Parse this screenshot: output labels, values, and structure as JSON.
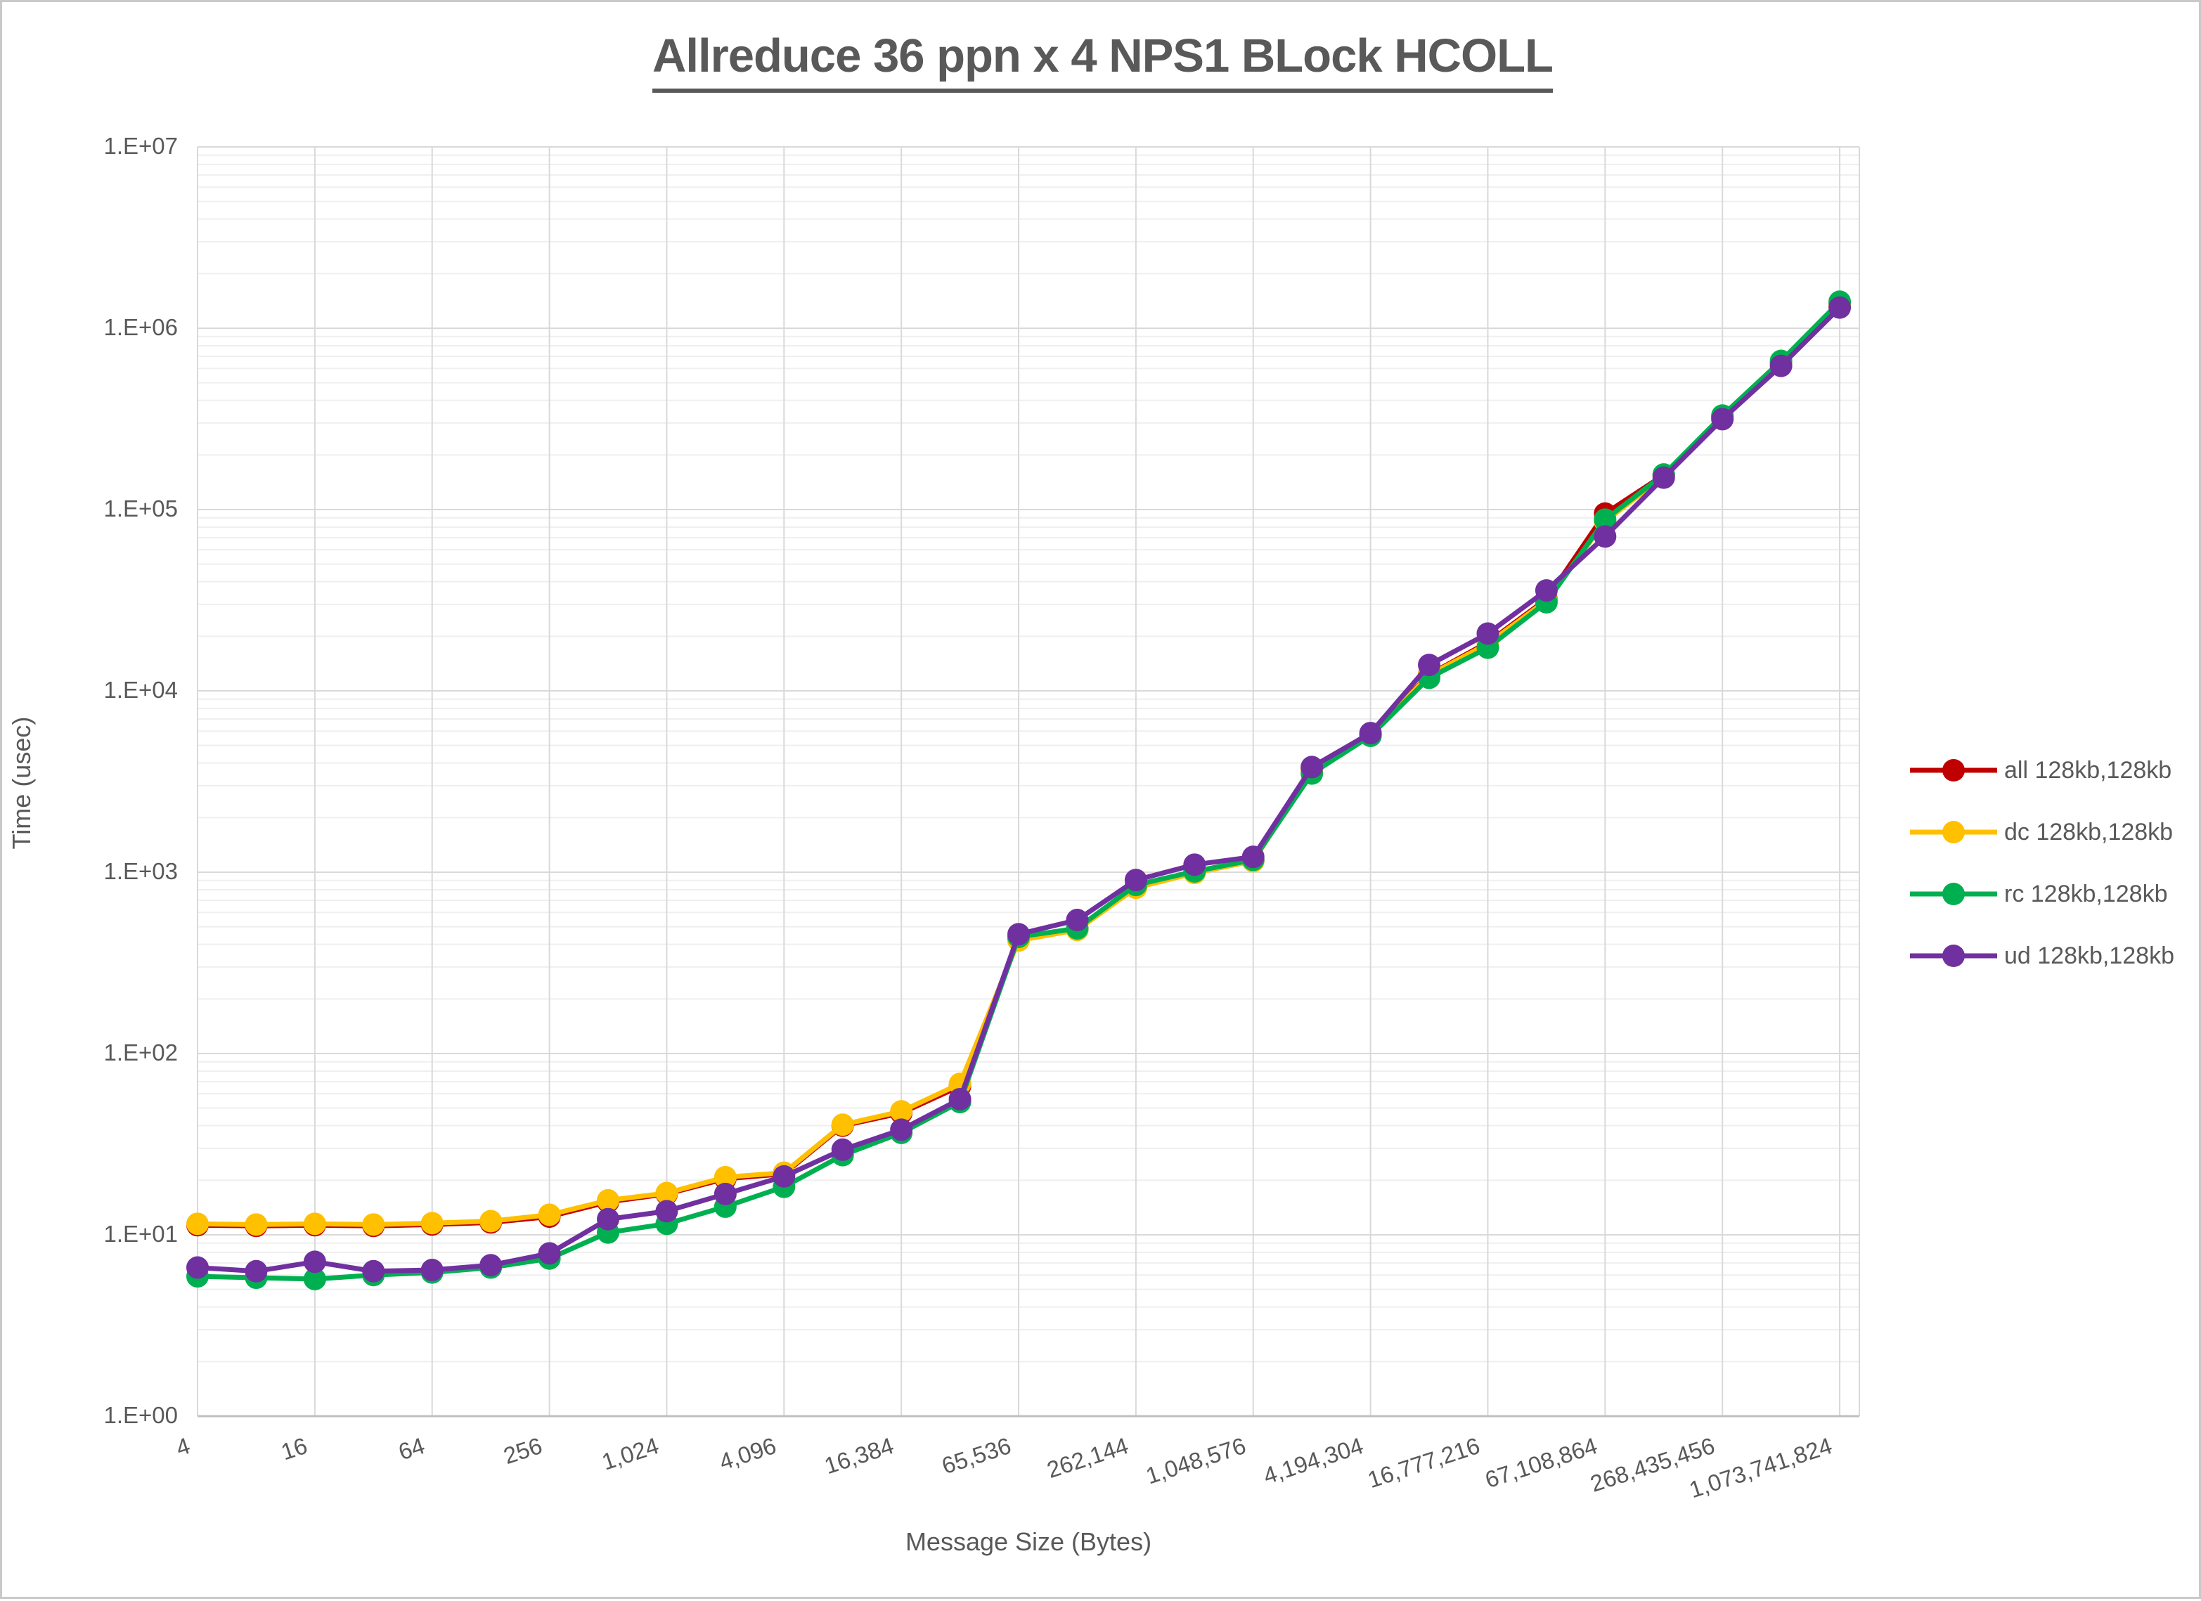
{
  "title": "Allreduce 36 ppn x 4 NPS1 BLock HCOLL",
  "axes": {
    "x_title": "Message Size (Bytes)",
    "y_title": "Time (usec)",
    "y_tick_labels": [
      "1.E+00",
      "1.E+01",
      "1.E+02",
      "1.E+03",
      "1.E+04",
      "1.E+05",
      "1.E+06",
      "1.E+07"
    ],
    "x_tick_labels": [
      "4",
      "16",
      "64",
      "256",
      "1,024",
      "4,096",
      "16,384",
      "65,536",
      "262,144",
      "1,048,576",
      "4,194,304",
      "16,777,216",
      "67,108,864",
      "268,435,456",
      "1,073,741,824"
    ]
  },
  "colors": {
    "text": "#595959",
    "grid_major": "#D9D9D9",
    "grid_minor": "#EFEFEF",
    "axis_line": "#BFBFBF",
    "series_all": "#C00000",
    "series_dc": "#FFC000",
    "series_rc": "#00B050",
    "series_ud": "#7030A0"
  },
  "legend": [
    {
      "label": "all 128kb,128kb",
      "color": "#C00000"
    },
    {
      "label": "dc 128kb,128kb",
      "color": "#FFC000"
    },
    {
      "label": "rc 128kb,128kb",
      "color": "#00B050"
    },
    {
      "label": "ud 128kb,128kb",
      "color": "#7030A0"
    }
  ],
  "chart_data": {
    "type": "line",
    "title": "Allreduce 36 ppn x 4 NPS1 BLock HCOLL",
    "xlabel": "Message Size (Bytes)",
    "ylabel": "Time (usec)",
    "x_scale": "log2",
    "y_scale": "log10",
    "ylim": [
      1,
      10000000
    ],
    "xlim": [
      4,
      1073741824
    ],
    "grid": "horizontal major+minor, vertical major at power-of-4 ticks",
    "legend_position": "right",
    "marker": "circle",
    "x": [
      4,
      8,
      16,
      32,
      64,
      128,
      256,
      512,
      1024,
      2048,
      4096,
      8192,
      16384,
      32768,
      65536,
      131072,
      262144,
      524288,
      1048576,
      2097152,
      4194304,
      8388608,
      16777216,
      33554432,
      67108864,
      134217728,
      268435456,
      536870912,
      1073741824
    ],
    "series": [
      {
        "name": "all 128kb,128kb",
        "color": "#C00000",
        "values": [
          11.3,
          11.2,
          11.3,
          11.2,
          11.4,
          11.7,
          12.6,
          15.2,
          16.8,
          20.4,
          21.7,
          40,
          47,
          66,
          425,
          484,
          830,
          1000,
          1160,
          3700,
          5750,
          12300,
          18500,
          32000,
          95000,
          155000,
          325000,
          640000,
          1350000
        ]
      },
      {
        "name": "dc 128kb,128kb",
        "color": "#FFC000",
        "values": [
          11.5,
          11.4,
          11.5,
          11.4,
          11.6,
          11.9,
          12.9,
          15.5,
          17.0,
          20.8,
          22.0,
          40.5,
          48,
          68,
          420,
          480,
          820,
          990,
          1150,
          3650,
          5700,
          12200,
          18200,
          31500,
          86000,
          153000,
          320000,
          635000,
          1340000
        ]
      },
      {
        "name": "rc 128kb,128kb",
        "color": "#00B050",
        "values": [
          5.9,
          5.8,
          5.7,
          6.0,
          6.2,
          6.6,
          7.4,
          10.3,
          11.5,
          14.3,
          18.4,
          27.5,
          36.5,
          54,
          440,
          490,
          850,
          1010,
          1170,
          3500,
          5650,
          11800,
          17300,
          30800,
          88000,
          156000,
          330000,
          660000,
          1400000
        ]
      },
      {
        "name": "ud 128kb,128kb",
        "color": "#7030A0",
        "values": [
          6.6,
          6.3,
          7.1,
          6.3,
          6.4,
          6.8,
          7.9,
          12.2,
          13.5,
          16.8,
          21.0,
          29.5,
          38,
          56,
          455,
          545,
          905,
          1100,
          1215,
          3800,
          5850,
          13900,
          20700,
          35800,
          71000,
          150000,
          315000,
          620000,
          1300000
        ]
      }
    ]
  }
}
